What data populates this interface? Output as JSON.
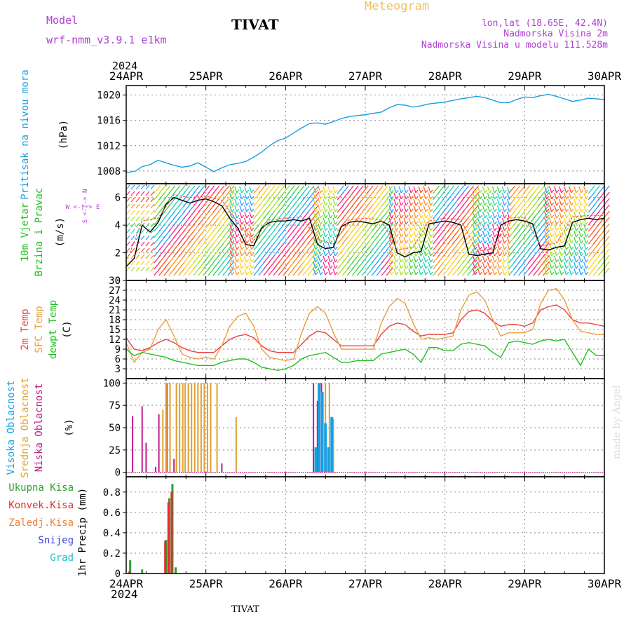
{
  "header": {
    "model_label": "Model",
    "model_name": "wrf-nmm_v3.9.1 e1km",
    "station": "TIVAT",
    "meteogram": "Meteogram",
    "lonlat": "lon,lat (18.65E, 42.4N)",
    "altitude": "Nadmorska Visina 2m",
    "model_altitude": "Nadmorska Visina u modelu 111.528m",
    "year_top": "2024",
    "year_bottom": "2024",
    "footer": "TIVAT",
    "credit": "made by Angel"
  },
  "colors": {
    "pressure": "#1a9fe0",
    "temp2m": "#e84040",
    "sfc": "#e8a040",
    "dewpt": "#20c020",
    "high_cloud": "#1a9fe0",
    "mid_cloud": "#e0a030",
    "low_cloud": "#c01a8a",
    "precip_total": "#2ea02e",
    "precip_conv": "#e03030",
    "precip_frz": "#f08030",
    "snow": "#4040e0",
    "graupel": "#20c0c0",
    "wind_speed": "#000000",
    "wind_gust": "#ff5050",
    "purple": "#b040d0"
  },
  "chart_data": {
    "type": "line",
    "x_axis": {
      "ticks": [
        "24APR",
        "25APR",
        "26APR",
        "27APR",
        "28APR",
        "29APR",
        "30APR"
      ],
      "range_days": [
        0,
        6
      ]
    },
    "panels": [
      {
        "id": "pressure",
        "ylabel": [
          "Pritisak na nivou mora",
          "(hPa)"
        ],
        "ylim": [
          1006,
          1021.5
        ],
        "yticks": [
          1008,
          1012,
          1016,
          1020
        ],
        "series": [
          {
            "name": "Pritisak na nivou mora",
            "x": [
              0,
              0.12,
              0.2,
              0.3,
              0.4,
              0.5,
              0.6,
              0.7,
              0.8,
              0.9,
              1.0,
              1.1,
              1.2,
              1.3,
              1.4,
              1.5,
              1.6,
              1.7,
              1.8,
              1.9,
              2.0,
              2.1,
              2.2,
              2.3,
              2.4,
              2.5,
              2.6,
              2.7,
              2.8,
              3.0,
              3.2,
              3.3,
              3.4,
              3.5,
              3.6,
              3.7,
              3.8,
              4.0,
              4.2,
              4.4,
              4.5,
              4.6,
              4.7,
              4.8,
              4.9,
              5.0,
              5.1,
              5.2,
              5.3,
              5.4,
              5.5,
              5.6,
              5.7,
              5.8,
              5.9,
              6.0
            ],
            "y": [
              1007.7,
              1008,
              1008.7,
              1009,
              1009.7,
              1009.3,
              1008.9,
              1008.6,
              1008.8,
              1009.3,
              1008.6,
              1007.9,
              1008.5,
              1009.0,
              1009.2,
              1009.5,
              1010.2,
              1011.0,
              1012.0,
              1012.8,
              1013.2,
              1014.0,
              1014.8,
              1015.5,
              1015.6,
              1015.4,
              1015.8,
              1016.3,
              1016.6,
              1016.9,
              1017.3,
              1018.0,
              1018.5,
              1018.4,
              1018.1,
              1018.3,
              1018.6,
              1018.9,
              1019.4,
              1019.8,
              1019.6,
              1019.2,
              1018.8,
              1018.8,
              1019.3,
              1019.7,
              1019.6,
              1019.9,
              1020.1,
              1019.8,
              1019.4,
              1019.0,
              1019.2,
              1019.5,
              1019.4,
              1019.3
            ]
          }
        ]
      },
      {
        "id": "wind",
        "ylabel": [
          "10m Vjetar",
          "Brzina i Pravac",
          "(m/s)"
        ],
        "direction_legend": "W <-|-> E",
        "direction_legend_vert": "S <-|-> N",
        "ylim": [
          0,
          7
        ],
        "yticks": [
          0,
          2,
          4,
          6
        ],
        "series": [
          {
            "name": "Brzina",
            "x": [
              0,
              0.1,
              0.2,
              0.3,
              0.4,
              0.5,
              0.6,
              0.7,
              0.8,
              0.9,
              1.0,
              1.1,
              1.2,
              1.3,
              1.4,
              1.5,
              1.6,
              1.7,
              1.8,
              1.9,
              2.0,
              2.1,
              2.2,
              2.3,
              2.4,
              2.5,
              2.6,
              2.7,
              2.8,
              2.9,
              3.0,
              3.1,
              3.2,
              3.3,
              3.4,
              3.5,
              3.6,
              3.7,
              3.8,
              3.9,
              4.0,
              4.1,
              4.2,
              4.3,
              4.4,
              4.5,
              4.6,
              4.7,
              4.8,
              4.9,
              5.0,
              5.1,
              5.2,
              5.3,
              5.4,
              5.5,
              5.6,
              5.7,
              5.8,
              5.9,
              6.0
            ],
            "y": [
              1.0,
              1.6,
              4.0,
              3.5,
              4.2,
              5.5,
              6.0,
              5.8,
              5.6,
              5.8,
              5.9,
              5.7,
              5.4,
              4.5,
              3.8,
              2.6,
              2.5,
              3.8,
              4.2,
              4.3,
              4.3,
              4.4,
              4.3,
              4.5,
              2.6,
              2.3,
              2.4,
              3.9,
              4.2,
              4.3,
              4.2,
              4.1,
              4.3,
              4.0,
              2.0,
              1.7,
              2.0,
              2.1,
              4.1,
              4.2,
              4.3,
              4.2,
              4.0,
              1.9,
              1.8,
              1.9,
              2.0,
              4.0,
              4.3,
              4.4,
              4.3,
              4.1,
              2.3,
              2.2,
              2.4,
              2.5,
              4.2,
              4.4,
              4.5,
              4.4,
              4.5
            ]
          },
          {
            "name": "Udar",
            "x": [
              0,
              0.2,
              0.4,
              0.6,
              0.8,
              1.0,
              1.2,
              1.4,
              1.6,
              1.8,
              2.0,
              2.2,
              2.4,
              2.6,
              2.8,
              3.0,
              3.2,
              3.4,
              3.6,
              3.8,
              4.0,
              4.2,
              4.4,
              4.6,
              4.8,
              5.0,
              5.2,
              5.4,
              5.6,
              5.8,
              6.0
            ],
            "y": [
              1.3,
              4.3,
              4.5,
              6.2,
              6.0,
              6.1,
              5.8,
              4.2,
              2.9,
              4.4,
              4.5,
              4.6,
              3.0,
              2.6,
              4.4,
              4.5,
              4.4,
              2.2,
              2.4,
              4.3,
              4.5,
              4.4,
              2.1,
              2.3,
              4.5,
              4.6,
              2.5,
              2.7,
              4.6,
              4.7,
              4.7
            ]
          }
        ]
      },
      {
        "id": "temperature",
        "ylabel": [
          "2m Temp",
          "SFC Temp",
          "dewpt Temp",
          "(C)"
        ],
        "ylim": [
          0,
          30
        ],
        "yticks": [
          3,
          6,
          9,
          12,
          15,
          18,
          21,
          24,
          27,
          30
        ],
        "series": [
          {
            "name": "2m Temp",
            "x": [
              0,
              0.1,
              0.2,
              0.3,
              0.4,
              0.5,
              0.6,
              0.7,
              0.8,
              0.9,
              1.0,
              1.1,
              1.2,
              1.3,
              1.4,
              1.5,
              1.6,
              1.7,
              1.8,
              1.9,
              2.0,
              2.1,
              2.2,
              2.3,
              2.4,
              2.5,
              2.6,
              2.7,
              2.8,
              2.9,
              3.0,
              3.1,
              3.2,
              3.3,
              3.4,
              3.5,
              3.6,
              3.7,
              3.8,
              3.9,
              4.0,
              4.1,
              4.2,
              4.3,
              4.4,
              4.5,
              4.6,
              4.7,
              4.8,
              4.9,
              5.0,
              5.1,
              5.2,
              5.3,
              5.4,
              5.5,
              5.6,
              5.7,
              5.8,
              5.9,
              6.0
            ],
            "y": [
              12.5,
              9,
              8.5,
              9.5,
              11,
              12,
              11,
              9.5,
              8.5,
              8,
              8,
              8,
              10,
              12,
              13,
              13.5,
              12.5,
              10,
              8.5,
              8,
              8,
              8,
              10.5,
              13,
              14.5,
              14,
              12,
              10,
              10,
              10,
              10,
              10,
              13.5,
              16,
              17,
              16.5,
              14.5,
              13,
              13.5,
              13.5,
              13.5,
              14,
              18,
              20.5,
              21,
              20,
              17.5,
              16,
              16.5,
              16.5,
              16,
              17,
              21,
              22,
              22.5,
              21,
              18,
              17,
              17,
              16.5,
              16
            ]
          },
          {
            "name": "SFC Temp",
            "x": [
              0,
              0.1,
              0.2,
              0.3,
              0.4,
              0.5,
              0.6,
              0.7,
              0.8,
              0.9,
              1.0,
              1.1,
              1.2,
              1.3,
              1.4,
              1.5,
              1.6,
              1.7,
              1.8,
              1.9,
              2.0,
              2.1,
              2.2,
              2.3,
              2.4,
              2.5,
              2.6,
              2.7,
              2.8,
              2.9,
              3.0,
              3.1,
              3.2,
              3.3,
              3.4,
              3.5,
              3.6,
              3.7,
              3.8,
              3.9,
              4.0,
              4.1,
              4.2,
              4.3,
              4.4,
              4.5,
              4.6,
              4.7,
              4.8,
              4.9,
              5.0,
              5.1,
              5.2,
              5.3,
              5.4,
              5.5,
              5.6,
              5.7,
              5.8,
              5.9,
              6.0
            ],
            "y": [
              11,
              5,
              8,
              9,
              15,
              18,
              13,
              7.5,
              6.5,
              6,
              6.5,
              6,
              10,
              16,
              19,
              20,
              16,
              9,
              6.5,
              6,
              5.5,
              6,
              14,
              20,
              22,
              20,
              14,
              9,
              9,
              9,
              9,
              9,
              17,
              22,
              24.5,
              23,
              17,
              12,
              12.5,
              12,
              12.5,
              13,
              21,
              25.5,
              26.5,
              24,
              18,
              13,
              14,
              14,
              14,
              15,
              23,
              27,
              27.5,
              24,
              18,
              14.5,
              14,
              13.5,
              13.5
            ]
          },
          {
            "name": "dewpt Temp",
            "x": [
              0,
              0.1,
              0.2,
              0.3,
              0.4,
              0.5,
              0.6,
              0.7,
              0.8,
              0.9,
              1.0,
              1.1,
              1.2,
              1.3,
              1.4,
              1.5,
              1.6,
              1.7,
              1.8,
              1.9,
              2.0,
              2.1,
              2.2,
              2.3,
              2.4,
              2.5,
              2.6,
              2.7,
              2.8,
              2.9,
              3.0,
              3.1,
              3.2,
              3.3,
              3.4,
              3.5,
              3.6,
              3.7,
              3.8,
              3.9,
              4.0,
              4.1,
              4.2,
              4.3,
              4.4,
              4.5,
              4.6,
              4.7,
              4.8,
              4.9,
              5.0,
              5.1,
              5.2,
              5.3,
              5.4,
              5.5,
              5.6,
              5.7,
              5.8,
              5.9,
              6.0
            ],
            "y": [
              9,
              7,
              8,
              7.5,
              7,
              6.5,
              5.5,
              5,
              4.5,
              4,
              4,
              4,
              5,
              5.5,
              6,
              6,
              5,
              3.5,
              3,
              2.5,
              3,
              4,
              6,
              7,
              7.5,
              8,
              6.5,
              5,
              5,
              5.5,
              5.5,
              5.5,
              7.5,
              8,
              8.5,
              9,
              7.5,
              5,
              9.5,
              9.5,
              8.5,
              8.5,
              10.5,
              11,
              10.5,
              10,
              8,
              6.5,
              11,
              11.5,
              11,
              10.5,
              11.5,
              12,
              11.5,
              12,
              8,
              4,
              9,
              7,
              7
            ]
          }
        ]
      },
      {
        "id": "cloud",
        "ylabel": [
          "Visoka Oblacnost",
          "Srednja Oblacnost",
          "Niska Oblacnost",
          "(%)"
        ],
        "ylim": [
          -5,
          105
        ],
        "yticks": [
          0,
          25,
          50,
          75,
          100
        ],
        "bars": [
          {
            "name": "Niska Oblacnost",
            "x": [
              0.08,
              0.2,
              0.25,
              0.37,
              0.41,
              0.51,
              0.55,
              0.6,
              1.2,
              2.35,
              2.4,
              2.45
            ],
            "y": [
              63,
              74,
              33,
              6,
              65,
              100,
              100,
              15,
              10,
              100,
              80,
              100
            ]
          },
          {
            "name": "Srednja Oblacnost",
            "x": [
              0.46,
              0.5,
              0.55,
              0.63,
              0.67,
              0.71,
              0.74,
              0.78,
              0.82,
              0.86,
              0.9,
              0.94,
              0.98,
              1.02,
              1.06,
              1.14,
              1.38,
              2.42,
              2.5,
              2.55,
              2.58,
              2.6
            ],
            "y": [
              70,
              100,
              100,
              100,
              100,
              100,
              100,
              100,
              100,
              100,
              100,
              100,
              100,
              100,
              100,
              100,
              62,
              100,
              100,
              100,
              60,
              60
            ]
          },
          {
            "name": "Visoka Oblacnost",
            "x": [
              2.38,
              2.42,
              2.46,
              2.5,
              2.54,
              2.58
            ],
            "y": [
              28,
              100,
              90,
              55,
              28,
              62
            ]
          }
        ]
      },
      {
        "id": "precip",
        "ylabel": [
          "Ukupna Kisa",
          "Konvek.Kisa",
          "Zaledj.Kisa",
          "Snijeg",
          "Grad",
          "1hr Precip (mm)"
        ],
        "ylim": [
          0,
          0.95
        ],
        "yticks": [
          0,
          0.2,
          0.4,
          0.6,
          0.8
        ],
        "bars": [
          {
            "name": "Ukupna Kisa",
            "x": [
              0.05,
              0.2,
              0.5,
              0.54,
              0.58,
              0.62
            ],
            "y": [
              0.13,
              0.04,
              0.33,
              0.74,
              0.88,
              0.06
            ]
          },
          {
            "name": "Konvek.Kisa",
            "x": [
              0.04,
              0.49,
              0.53,
              0.57
            ],
            "y": [
              0.02,
              0.32,
              0.7,
              0.8
            ]
          }
        ]
      }
    ]
  }
}
